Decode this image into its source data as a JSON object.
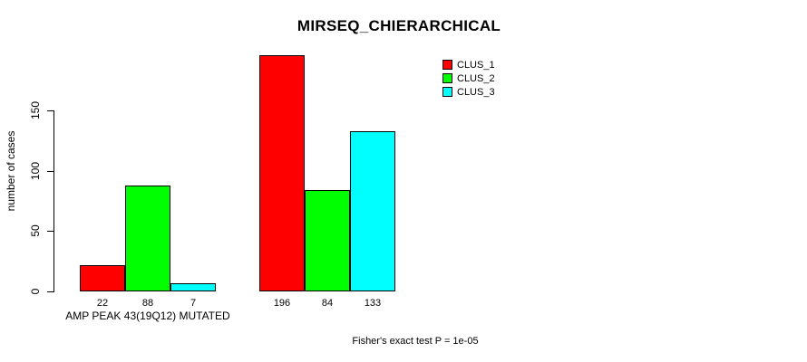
{
  "title": "MIRSEQ_CHIERARCHICAL",
  "footnote": "Fisher's exact test P = 1e-05",
  "chart_data": {
    "type": "bar",
    "title": "MIRSEQ_CHIERARCHICAL",
    "xlabel": "",
    "ylabel": "number of cases",
    "ylim": [
      0,
      150
    ],
    "yticks": [
      0,
      50,
      100,
      150
    ],
    "grid": false,
    "legend_position": "top-right",
    "series": [
      {
        "name": "CLUS_1",
        "color": "#ff0000"
      },
      {
        "name": "CLUS_2",
        "color": "#00ff00"
      },
      {
        "name": "CLUS_3",
        "color": "#00ffff"
      }
    ],
    "groups": [
      {
        "label": "AMP PEAK 43(19Q12) MUTATED",
        "values": [
          22,
          88,
          7
        ]
      },
      {
        "label": "",
        "values": [
          196,
          84,
          133
        ]
      }
    ],
    "bar_value_labels": [
      [
        "22",
        "88",
        "7"
      ],
      [
        "196",
        "84",
        "133"
      ]
    ],
    "annotation": "Fisher's exact test P = 1e-05"
  }
}
